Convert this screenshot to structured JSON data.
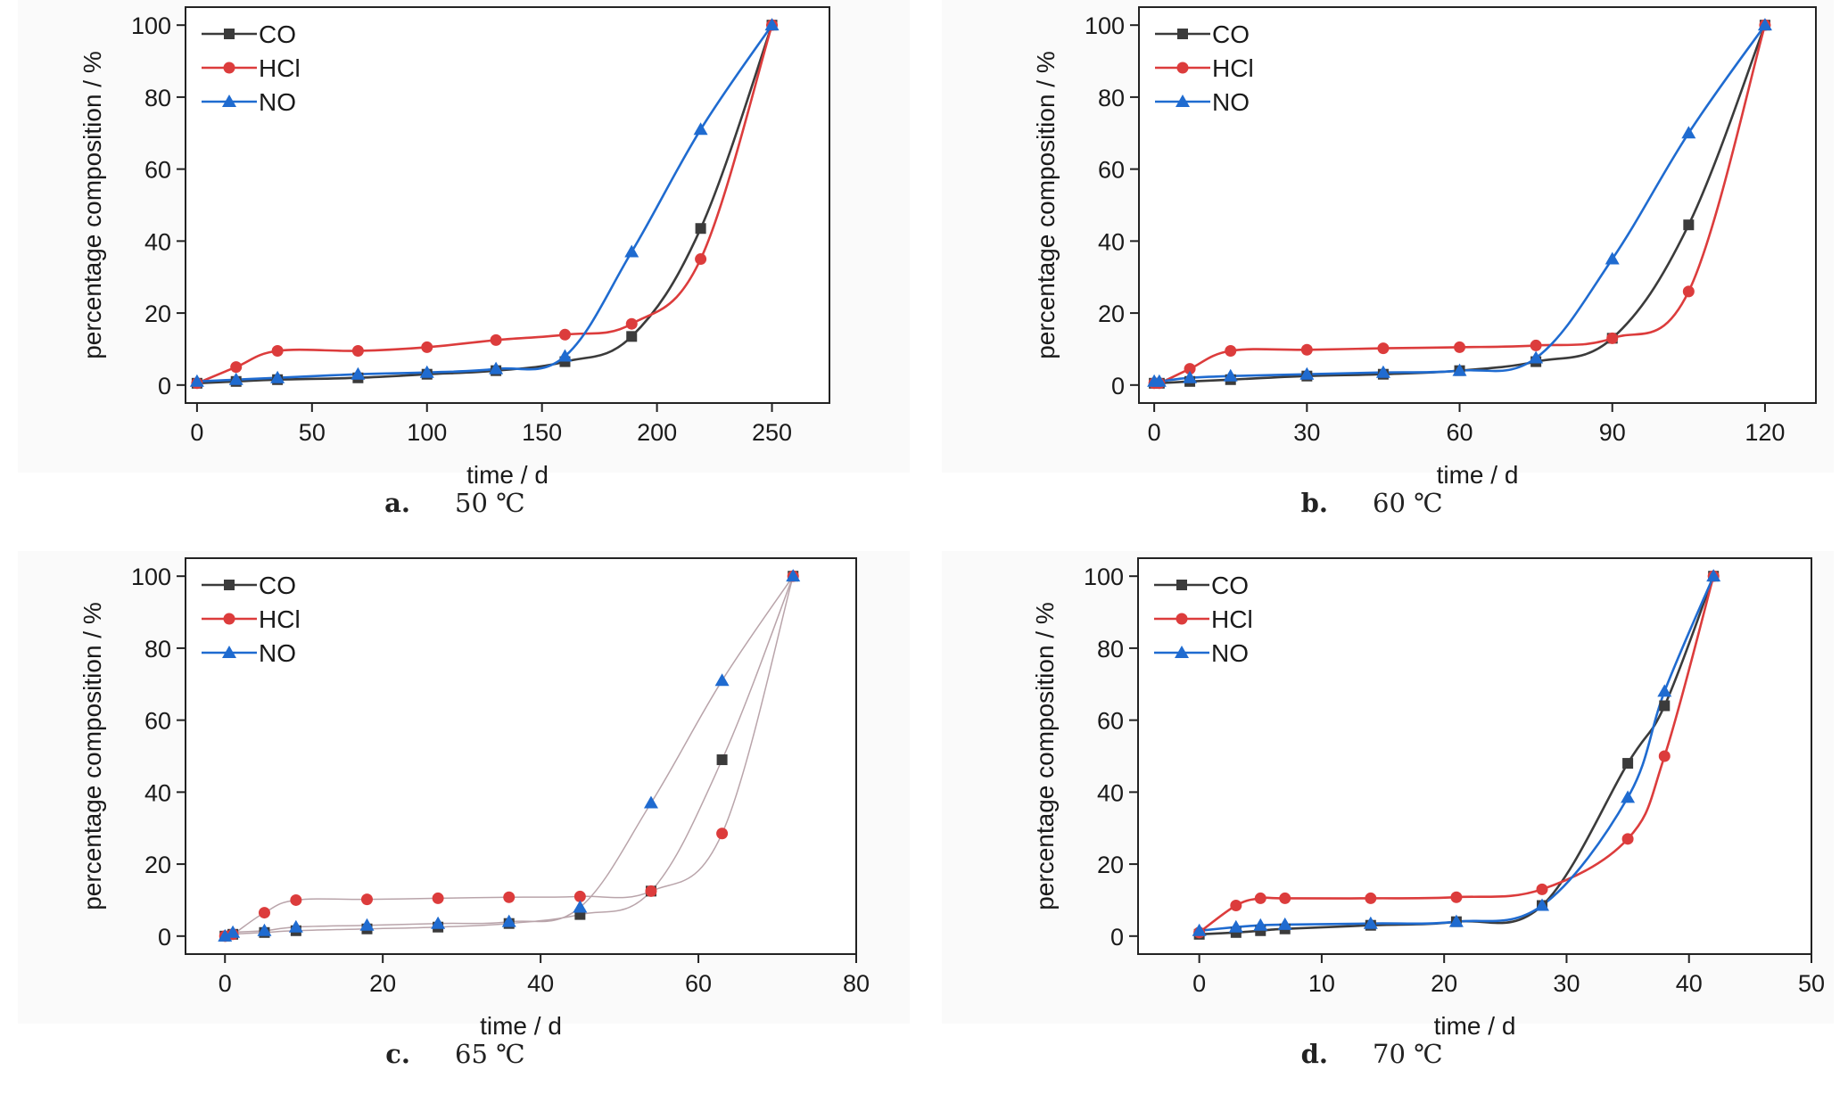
{
  "colors": {
    "CO": "#3b3b3b",
    "HCl": "#dc3c3c",
    "NO": "#1f6bd0"
  },
  "panels": [
    {
      "id": "a",
      "caption_letter": "a.",
      "caption_temp": "50 ℃",
      "chart_data": {
        "type": "line",
        "xlabel": "time / d",
        "ylabel": "percentage composition / %",
        "xlim": [
          -5,
          275
        ],
        "ylim": [
          -5,
          105
        ],
        "xticks": [
          0,
          50,
          100,
          150,
          200,
          250
        ],
        "yticks": [
          0,
          20,
          40,
          60,
          80,
          100
        ],
        "legend": "top-left",
        "thin_curves": false,
        "series": [
          {
            "name": "CO",
            "marker": "square",
            "x": [
              0,
              17,
              35,
              70,
              100,
              130,
              160,
              189,
              219,
              250
            ],
            "y": [
              0.5,
              1,
              1.5,
              2,
              3,
              4,
              6.5,
              13.5,
              43.5,
              100
            ]
          },
          {
            "name": "HCl",
            "marker": "circle",
            "x": [
              0,
              17,
              35,
              70,
              100,
              130,
              160,
              189,
              219,
              250
            ],
            "y": [
              0.5,
              5,
              9.5,
              9.5,
              10.5,
              12.5,
              14,
              17,
              35,
              100
            ]
          },
          {
            "name": "NO",
            "marker": "triangle",
            "x": [
              0,
              17,
              35,
              70,
              100,
              130,
              160,
              189,
              219,
              250
            ],
            "y": [
              1,
              1.5,
              2,
              3,
              3.5,
              4.5,
              8,
              37,
              71,
              100
            ]
          }
        ]
      }
    },
    {
      "id": "b",
      "caption_letter": "b.",
      "caption_temp": "60 ℃",
      "chart_data": {
        "type": "line",
        "xlabel": "time / d",
        "ylabel": "percentage composition / %",
        "xlim": [
          -3,
          130
        ],
        "ylim": [
          -5,
          105
        ],
        "xticks": [
          0,
          30,
          60,
          90,
          120
        ],
        "yticks": [
          0,
          20,
          40,
          60,
          80,
          100
        ],
        "legend": "top-left",
        "thin_curves": false,
        "series": [
          {
            "name": "CO",
            "marker": "square",
            "x": [
              0,
              1,
              7,
              15,
              30,
              45,
              60,
              75,
              90,
              105,
              120
            ],
            "y": [
              0.5,
              0.5,
              1,
              1.5,
              2.5,
              3,
              4,
              6.5,
              13,
              44.5,
              100
            ]
          },
          {
            "name": "HCl",
            "marker": "circle",
            "x": [
              0,
              1,
              7,
              15,
              30,
              45,
              60,
              75,
              90,
              105,
              120
            ],
            "y": [
              0.5,
              0.5,
              4.5,
              9.5,
              9.8,
              10.2,
              10.5,
              11,
              13,
              26,
              100
            ]
          },
          {
            "name": "NO",
            "marker": "triangle",
            "x": [
              0,
              1,
              7,
              15,
              30,
              45,
              60,
              75,
              90,
              105,
              120
            ],
            "y": [
              1,
              1,
              2,
              2.5,
              3,
              3.5,
              4,
              7.5,
              35,
              70,
              100
            ]
          }
        ]
      }
    },
    {
      "id": "c",
      "caption_letter": "c.",
      "caption_temp": "65 ℃",
      "chart_data": {
        "type": "line",
        "xlabel": "time / d",
        "ylabel": "percentage composition / %",
        "xlim": [
          -5,
          80
        ],
        "ylim": [
          -5,
          105
        ],
        "xticks": [
          0,
          20,
          40,
          60,
          80
        ],
        "yticks": [
          0,
          20,
          40,
          60,
          80,
          100
        ],
        "legend": "top-left",
        "thin_curves": true,
        "series": [
          {
            "name": "CO",
            "marker": "square",
            "x": [
              0,
              1,
              5,
              9,
              18,
              27,
              36,
              45,
              54,
              63,
              72
            ],
            "y": [
              0,
              0.5,
              1,
              1.5,
              2,
              2.5,
              3.5,
              6,
              12.5,
              49,
              100
            ]
          },
          {
            "name": "HCl",
            "marker": "circle",
            "x": [
              0,
              1,
              5,
              9,
              18,
              27,
              36,
              45,
              54,
              63,
              72
            ],
            "y": [
              0,
              0.5,
              6.5,
              10,
              10.2,
              10.5,
              10.8,
              11,
              12.5,
              28.5,
              100
            ]
          },
          {
            "name": "NO",
            "marker": "triangle",
            "x": [
              0,
              1,
              5,
              9,
              18,
              27,
              36,
              45,
              54,
              63,
              72
            ],
            "y": [
              0,
              1,
              1.5,
              2.5,
              3,
              3.5,
              4,
              8,
              37,
              71,
              100
            ]
          }
        ]
      }
    },
    {
      "id": "d",
      "caption_letter": "d.",
      "caption_temp": "70 ℃",
      "chart_data": {
        "type": "line",
        "xlabel": "time / d",
        "ylabel": "percentage composition / %",
        "xlim": [
          -5,
          50
        ],
        "ylim": [
          -5,
          105
        ],
        "xticks": [
          0,
          10,
          20,
          30,
          40,
          50
        ],
        "yticks": [
          0,
          20,
          40,
          60,
          80,
          100
        ],
        "legend": "top-left",
        "thin_curves": false,
        "series": [
          {
            "name": "CO",
            "marker": "square",
            "x": [
              0,
              3,
              5,
              7,
              14,
              21,
              28,
              35,
              38,
              42
            ],
            "y": [
              0.5,
              1,
              1.5,
              2,
              3,
              4,
              8.5,
              48,
              64,
              100
            ]
          },
          {
            "name": "HCl",
            "marker": "circle",
            "x": [
              0,
              3,
              5,
              7,
              14,
              21,
              28,
              35,
              38,
              42
            ],
            "y": [
              1,
              8.5,
              10.5,
              10.5,
              10.5,
              10.8,
              13,
              27,
              50,
              100
            ]
          },
          {
            "name": "NO",
            "marker": "triangle",
            "x": [
              0,
              3,
              5,
              7,
              14,
              21,
              28,
              35,
              38,
              42
            ],
            "y": [
              1.5,
              2.5,
              3,
              3.2,
              3.5,
              4,
              8.5,
              38.5,
              68,
              100
            ]
          }
        ]
      }
    }
  ]
}
